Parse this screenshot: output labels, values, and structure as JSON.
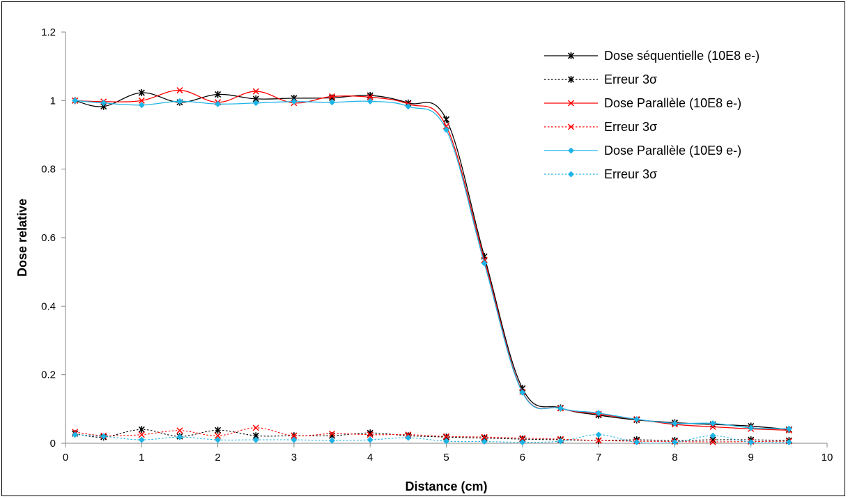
{
  "chart_data": {
    "type": "line",
    "title": "",
    "xlabel": "Distance (cm)",
    "ylabel": "Dose relative",
    "xlim": [
      0,
      10
    ],
    "ylim": [
      0,
      1.2
    ],
    "x_ticks": [
      "0",
      "1",
      "2",
      "3",
      "4",
      "5",
      "6",
      "7",
      "8",
      "9",
      "10"
    ],
    "y_ticks": [
      "0",
      "0.2",
      "0.4",
      "0.6",
      "0.8",
      "1",
      "1.2"
    ],
    "grid": false,
    "legend_position": "top-right",
    "x": [
      0.125,
      0.5,
      1,
      1.5,
      2,
      2.5,
      3,
      3.5,
      4,
      4.5,
      5,
      5.5,
      6,
      6.5,
      7,
      7.5,
      8,
      8.5,
      9,
      9.5
    ],
    "series": [
      {
        "name": "Dose séquentielle (10E8 e-)",
        "color": "#000000",
        "dash": "solid",
        "marker": "star",
        "values": [
          1.0,
          0.983,
          1.023,
          0.995,
          1.018,
          1.005,
          1.007,
          1.008,
          1.015,
          0.993,
          0.945,
          0.545,
          0.16,
          0.103,
          0.082,
          0.068,
          0.06,
          0.055,
          0.05,
          0.04
        ]
      },
      {
        "name": "Erreur 3σ",
        "color": "#000000",
        "dash": "dotted",
        "marker": "star",
        "values": [
          0.028,
          0.018,
          0.04,
          0.02,
          0.038,
          0.022,
          0.022,
          0.022,
          0.03,
          0.022,
          0.018,
          0.015,
          0.012,
          0.01,
          0.008,
          0.01,
          0.008,
          0.01,
          0.01,
          0.008
        ]
      },
      {
        "name": "Dose Parallèle (10E8 e-)",
        "color": "#ff0000",
        "dash": "solid",
        "marker": "x",
        "values": [
          1.0,
          0.997,
          1.0,
          1.03,
          0.995,
          1.027,
          0.993,
          1.012,
          1.01,
          0.99,
          0.925,
          0.535,
          0.15,
          0.102,
          0.085,
          0.07,
          0.055,
          0.048,
          0.042,
          0.038
        ]
      },
      {
        "name": "Erreur 3σ",
        "color": "#ff0000",
        "dash": "dotted",
        "marker": "x",
        "values": [
          0.033,
          0.022,
          0.025,
          0.037,
          0.022,
          0.045,
          0.022,
          0.028,
          0.025,
          0.025,
          0.02,
          0.018,
          0.015,
          0.012,
          0.008,
          0.006,
          0.005,
          0.004,
          0.005,
          0.006
        ]
      },
      {
        "name": "Dose Parallèle (10E9 e-)",
        "color": "#1eb4e6",
        "dash": "solid",
        "marker": "diamond",
        "values": [
          1.0,
          0.993,
          0.987,
          0.998,
          0.99,
          0.993,
          0.997,
          0.995,
          0.998,
          0.983,
          0.915,
          0.525,
          0.148,
          0.102,
          0.088,
          0.07,
          0.058,
          0.058,
          0.045,
          0.042
        ]
      },
      {
        "name": "Erreur 3σ",
        "color": "#1eb4e6",
        "dash": "dotted",
        "marker": "diamond",
        "values": [
          0.025,
          0.02,
          0.01,
          0.018,
          0.01,
          0.01,
          0.01,
          0.008,
          0.01,
          0.016,
          0.006,
          0.005,
          0.003,
          0.006,
          0.025,
          0.003,
          0.003,
          0.022,
          0.003,
          0.003
        ]
      }
    ]
  }
}
